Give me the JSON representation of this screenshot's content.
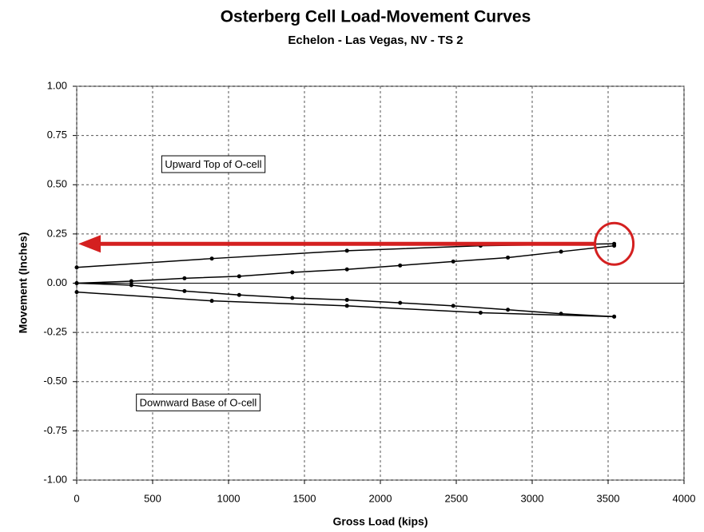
{
  "chart_data": {
    "type": "line",
    "title": "Osterberg Cell Load-Movement Curves",
    "subtitle": "Echelon - Las Vegas, NV - TS 2",
    "x_label": "Gross Load  (kips)",
    "y_label": "Movement (Inches)",
    "annotations": [
      "Upward Top of O-cell",
      "Downward Base of O-cell"
    ],
    "xlim": [
      0,
      4000
    ],
    "xticks": [
      0,
      500,
      1000,
      1500,
      2000,
      2500,
      3000,
      3500,
      4000
    ],
    "ylim": [
      -1,
      1
    ],
    "yticks": [
      {
        "value": -1,
        "label": "-1.00"
      },
      {
        "value": -0.75,
        "label": "-0.75"
      },
      {
        "value": -0.5,
        "label": "-0.50"
      },
      {
        "value": -0.25,
        "label": "-0.25"
      },
      {
        "value": 0,
        "label": "0.00"
      },
      {
        "value": 0.25,
        "label": "0.25"
      },
      {
        "value": 0.5,
        "label": "0.50"
      },
      {
        "value": 0.75,
        "label": "0.75"
      },
      {
        "value": 1,
        "label": "1.00"
      }
    ],
    "grid": true,
    "series": [
      {
        "color": "#000000",
        "x": [
          0,
          360,
          710,
          1070,
          1420,
          1780,
          2130,
          2480,
          2840,
          3190,
          3540
        ],
        "values": [
          0,
          0.01,
          0.025,
          0.035,
          0.055,
          0.07,
          0.09,
          0.11,
          0.13,
          0.16,
          0.19
        ]
      },
      {
        "color": "#000000",
        "x": [
          3540,
          2660,
          1780,
          890,
          0
        ],
        "values": [
          0.2,
          0.19,
          0.165,
          0.125,
          0.08
        ]
      },
      {
        "color": "#000000",
        "x": [
          0,
          360,
          710,
          1070,
          1420,
          1780,
          2130,
          2480,
          2840,
          3190,
          3540
        ],
        "values": [
          0,
          -0.01,
          -0.04,
          -0.06,
          -0.075,
          -0.085,
          -0.1,
          -0.115,
          -0.135,
          -0.155,
          -0.17
        ]
      },
      {
        "color": "#000000",
        "x": [
          3540,
          2660,
          1780,
          890,
          0
        ],
        "values": [
          -0.17,
          -0.15,
          -0.115,
          -0.09,
          -0.045
        ]
      }
    ]
  }
}
